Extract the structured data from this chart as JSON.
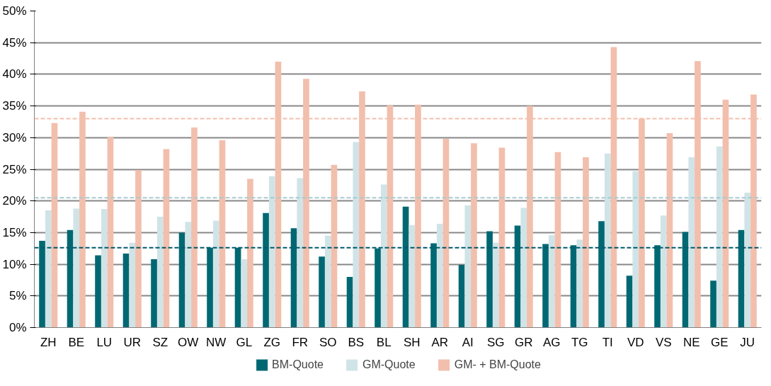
{
  "chart_data": {
    "type": "bar",
    "categories": [
      "ZH",
      "BE",
      "LU",
      "UR",
      "SZ",
      "OW",
      "NW",
      "GL",
      "ZG",
      "FR",
      "SO",
      "BS",
      "BL",
      "SH",
      "AR",
      "AI",
      "SG",
      "GR",
      "AG",
      "TG",
      "TI",
      "VD",
      "VS",
      "NE",
      "GE",
      "JU"
    ],
    "series": [
      {
        "name": "BM-Quote",
        "color": "#006872",
        "values": [
          13.7,
          15.4,
          11.4,
          11.7,
          10.8,
          15.0,
          12.6,
          12.6,
          18.1,
          15.7,
          11.2,
          8.0,
          12.5,
          19.1,
          13.3,
          9.9,
          15.2,
          16.1,
          13.2,
          13.0,
          16.8,
          8.2,
          13.0,
          15.1,
          7.4,
          15.4
        ]
      },
      {
        "name": "GM-Quote",
        "color": "#d0e4e8",
        "values": [
          18.5,
          18.8,
          18.7,
          13.4,
          17.5,
          16.7,
          16.9,
          10.8,
          23.9,
          23.6,
          14.5,
          29.3,
          22.6,
          16.2,
          16.4,
          19.3,
          13.4,
          18.9,
          14.6,
          13.9,
          27.5,
          24.7,
          17.7,
          26.9,
          28.6,
          21.3
        ]
      },
      {
        "name": "GM- + BM-Quote",
        "color": "#f2bfad",
        "values": [
          32.3,
          34.1,
          30.1,
          24.9,
          28.2,
          31.6,
          29.6,
          23.5,
          42.0,
          39.3,
          25.7,
          37.3,
          35.1,
          35.2,
          29.8,
          29.1,
          28.4,
          35.0,
          27.7,
          26.9,
          44.3,
          33.0,
          30.7,
          42.1,
          36.0,
          36.8
        ]
      }
    ],
    "ylim": [
      0,
      50
    ],
    "yticks": [
      {
        "value": 0,
        "label": "0%"
      },
      {
        "value": 5,
        "label": "5%"
      },
      {
        "value": 10,
        "label": "10%"
      },
      {
        "value": 15,
        "label": "15%"
      },
      {
        "value": 20,
        "label": "20%"
      },
      {
        "value": 25,
        "label": "25%"
      },
      {
        "value": 30,
        "label": "30%"
      },
      {
        "value": 35,
        "label": "35%"
      },
      {
        "value": 40,
        "label": "40%"
      },
      {
        "value": 45,
        "label": "45%"
      },
      {
        "value": 50,
        "label": "50%"
      }
    ],
    "ref_lines": [
      {
        "axis": "y",
        "value": 33.0,
        "color": "#f2bfad",
        "line_style": "dashed"
      },
      {
        "axis": "y",
        "value": 20.5,
        "color": "#a9c9cf",
        "line_style": "dashed"
      },
      {
        "axis": "y",
        "value": 12.6,
        "color": "#005a6a",
        "line_style": "dashed"
      }
    ],
    "grid": "y",
    "legend": "bottom"
  }
}
